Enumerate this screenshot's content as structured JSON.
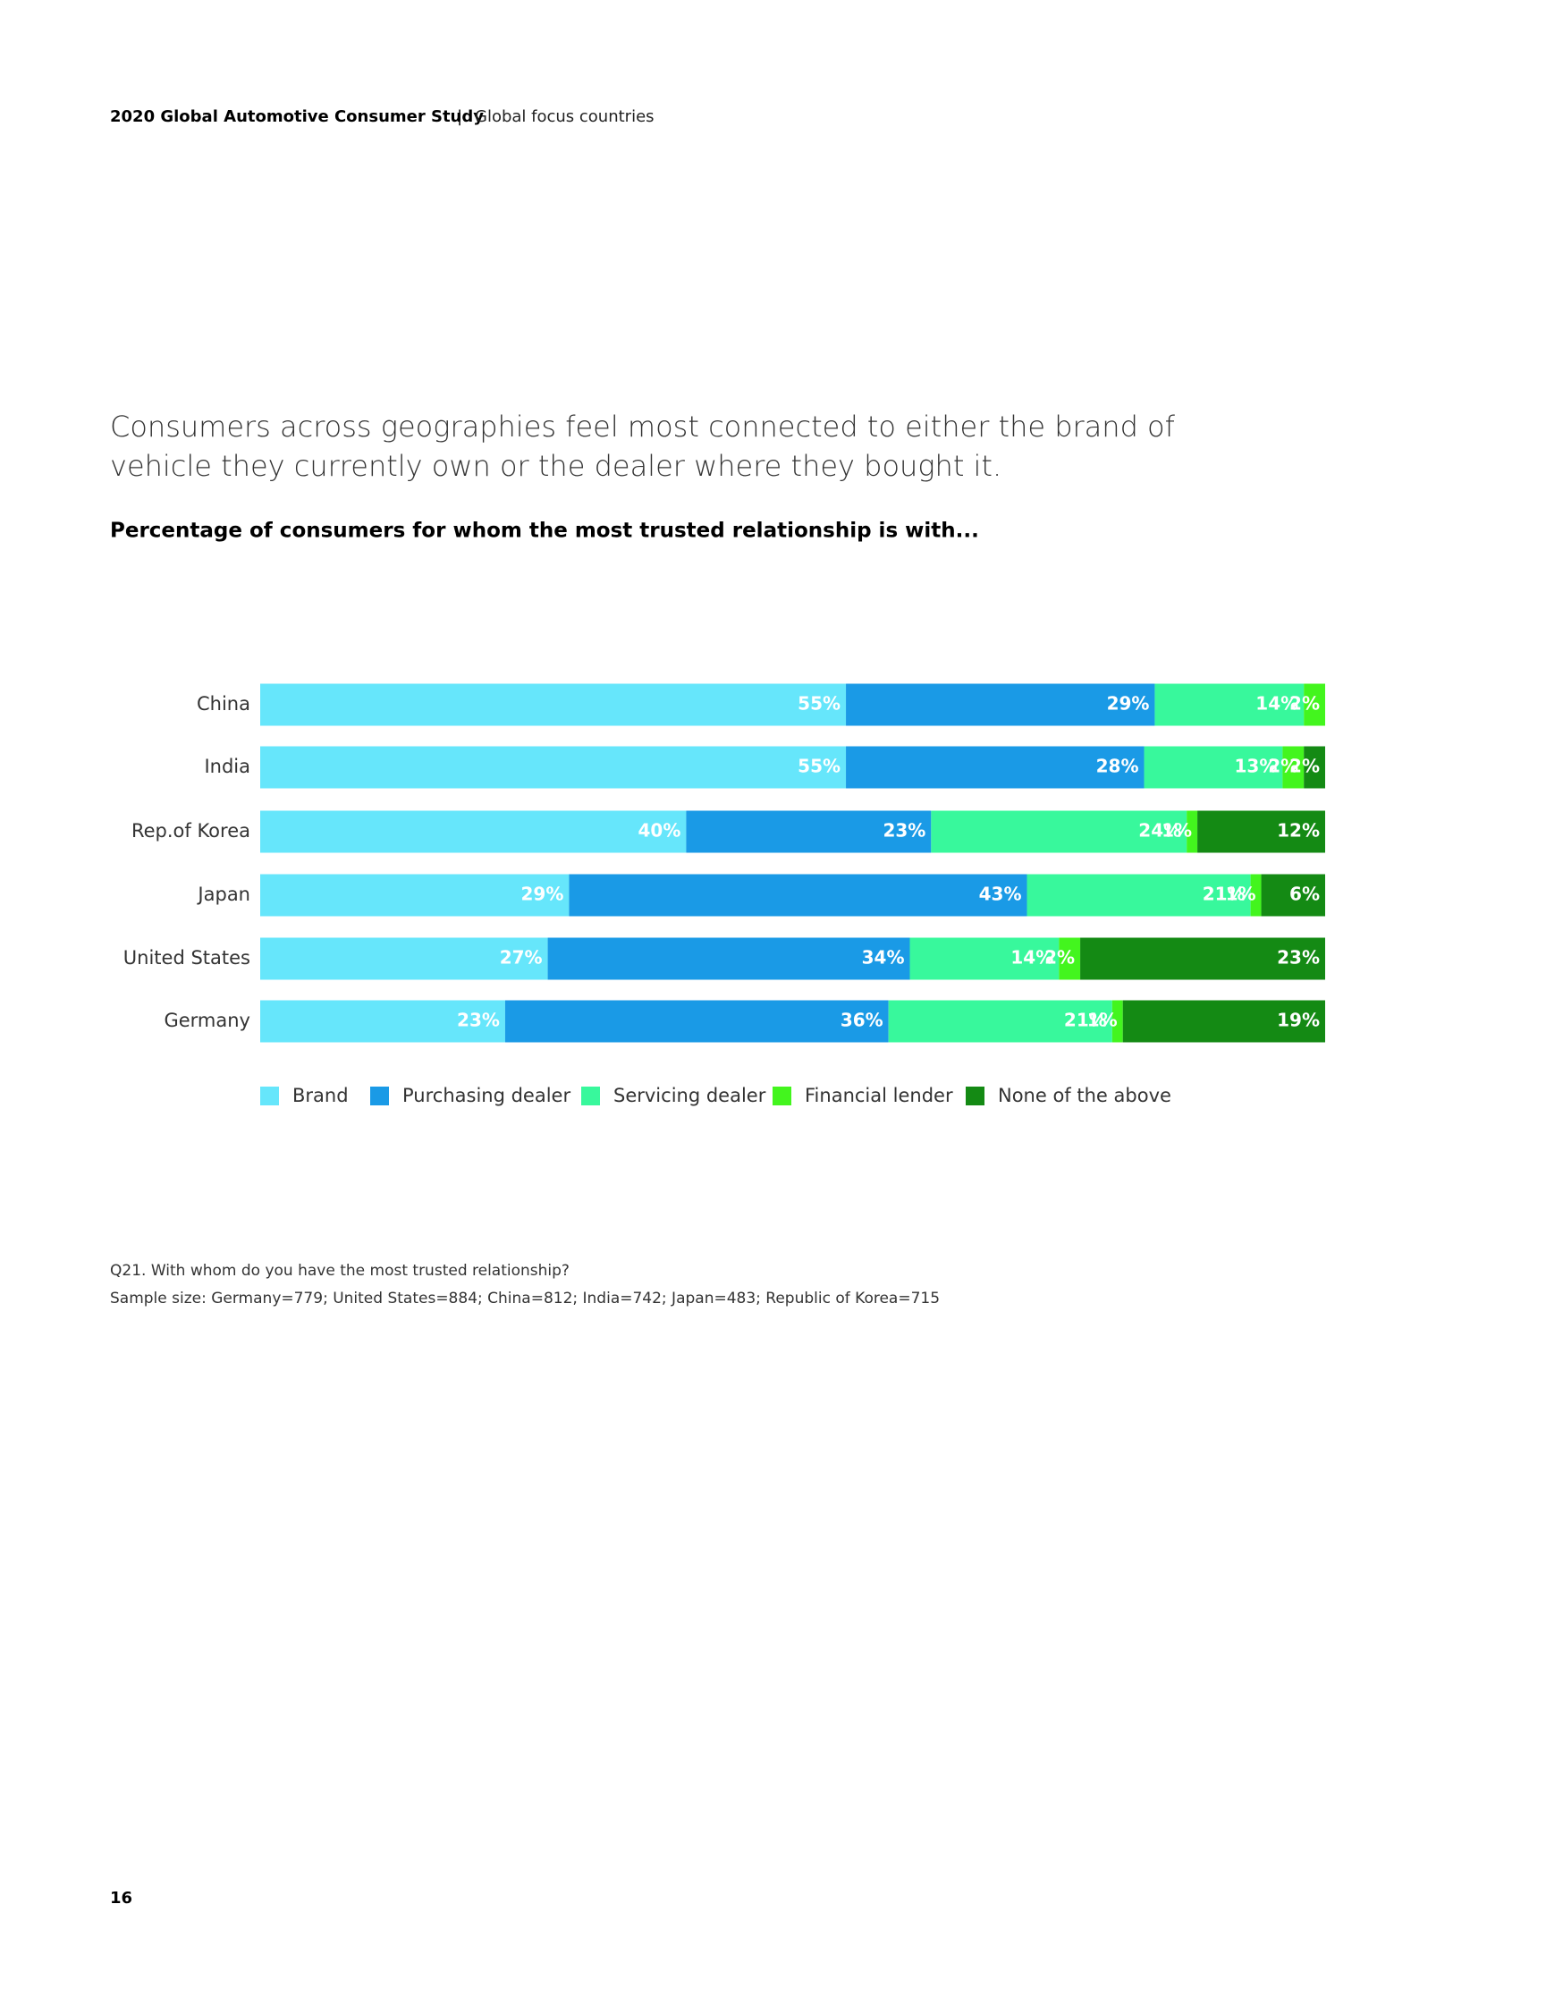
{
  "header": {
    "title": "2020 Global Automotive Consumer Study",
    "section": "Global focus countries"
  },
  "headline": "Consumers across geographies feel most connected to either the brand of vehicle they currently own or the dealer where they bought it.",
  "chart_data": {
    "type": "stacked-bar-horizontal",
    "title": "Percentage of consumers for whom the most trusted relationship is with...",
    "categories": [
      "China",
      "India",
      "Rep.of Korea",
      "Japan",
      "United States",
      "Germany"
    ],
    "xlim": [
      0,
      100
    ],
    "series": [
      {
        "name": "Brand",
        "color": "#66e6fb",
        "values": [
          55,
          55,
          40,
          29,
          27,
          23
        ],
        "value_labels": [
          "55%",
          "55%",
          "40%",
          "29%",
          "27%",
          "23%"
        ]
      },
      {
        "name": "Purchasing dealer",
        "color": "#1a9ae6",
        "values": [
          29,
          28,
          23,
          43,
          34,
          36
        ],
        "value_labels": [
          "29%",
          "28%",
          "23%",
          "43%",
          "34%",
          "36%"
        ]
      },
      {
        "name": "Servicing dealer",
        "color": "#38f89c",
        "values": [
          14,
          13,
          24,
          21,
          14,
          21
        ],
        "value_labels": [
          "14%",
          "13%",
          "24%",
          "21%",
          "14%",
          "21%"
        ]
      },
      {
        "name": "Financial lender",
        "color": "#43f51e",
        "values": [
          2,
          2,
          1,
          1,
          2,
          1
        ],
        "value_labels": [
          "2%",
          "2%",
          "1%",
          "1%",
          "2%",
          "1%"
        ]
      },
      {
        "name": "None of the above",
        "color": "#148a14",
        "values": [
          null,
          2,
          12,
          6,
          23,
          19
        ],
        "value_labels": [
          null,
          "2%",
          "12%",
          "6%",
          "23%",
          "19%"
        ]
      }
    ]
  },
  "footnotes": [
    "Q21. With whom do you have the most trusted relationship?",
    "Sample size: Germany=779; United States=884; China=812; India=742; Japan=483; Republic of Korea=715"
  ],
  "page_number": "16"
}
